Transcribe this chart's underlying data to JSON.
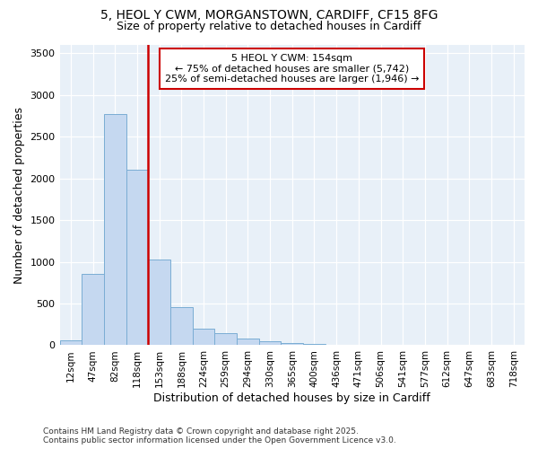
{
  "title_line1": "5, HEOL Y CWM, MORGANSTOWN, CARDIFF, CF15 8FG",
  "title_line2": "Size of property relative to detached houses in Cardiff",
  "xlabel": "Distribution of detached houses by size in Cardiff",
  "ylabel": "Number of detached properties",
  "bar_color": "#c5d8f0",
  "bar_edge_color": "#7aadd4",
  "highlight_color": "#cc0000",
  "background_color": "#e8f0f8",
  "annotation_text": "5 HEOL Y CWM: 154sqm\n← 75% of detached houses are smaller (5,742)\n25% of semi-detached houses are larger (1,946) →",
  "footer_line1": "Contains HM Land Registry data © Crown copyright and database right 2025.",
  "footer_line2": "Contains public sector information licensed under the Open Government Licence v3.0.",
  "categories": [
    "12sqm",
    "47sqm",
    "82sqm",
    "118sqm",
    "153sqm",
    "188sqm",
    "224sqm",
    "259sqm",
    "294sqm",
    "330sqm",
    "365sqm",
    "400sqm",
    "436sqm",
    "471sqm",
    "506sqm",
    "541sqm",
    "577sqm",
    "612sqm",
    "647sqm",
    "683sqm",
    "718sqm"
  ],
  "values": [
    55,
    850,
    2770,
    2100,
    1030,
    460,
    200,
    150,
    80,
    50,
    30,
    20,
    5,
    4,
    0,
    0,
    0,
    0,
    0,
    0,
    0
  ],
  "highlight_bin_index": 4,
  "ylim": [
    0,
    3600
  ],
  "yticks": [
    0,
    500,
    1000,
    1500,
    2000,
    2500,
    3000,
    3500
  ]
}
